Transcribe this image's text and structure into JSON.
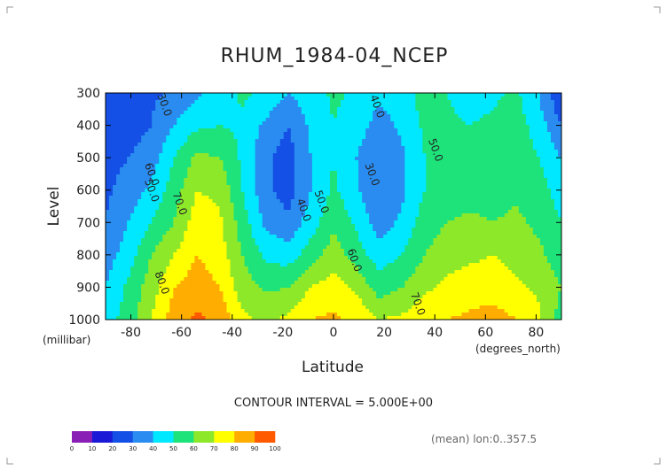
{
  "chart_data": {
    "type": "heatmap",
    "title": "RHUM_1984-04_NCEP",
    "xlabel": "Latitude",
    "ylabel": "Level",
    "x_unit": "(degrees_north)",
    "y_unit": "(millibar)",
    "xlim": [
      -90,
      90
    ],
    "ylim": [
      1000,
      300
    ],
    "x_ticks": [
      "-80",
      "-60",
      "-40",
      "-20",
      "0",
      "20",
      "40",
      "60",
      "80"
    ],
    "x_tick_values": [
      -80,
      -60,
      -40,
      -20,
      0,
      20,
      40,
      60,
      80
    ],
    "y_ticks": [
      "300",
      "400",
      "500",
      "600",
      "700",
      "800",
      "900",
      "1000"
    ],
    "y_tick_values": [
      300,
      400,
      500,
      600,
      700,
      800,
      900,
      1000
    ],
    "contour_interval_text": "CONTOUR INTERVAL = 5.000E+00",
    "footnote": "(mean) lon:0..357.5",
    "colorbar": {
      "levels": [
        0,
        10,
        20,
        30,
        40,
        50,
        60,
        70,
        80,
        90,
        100
      ],
      "labels": [
        "0",
        "10",
        "20",
        "30",
        "40",
        "50",
        "60",
        "70",
        "80",
        "90",
        "100"
      ],
      "colors": [
        "#8a1fb5",
        "#1a1ad6",
        "#1450e6",
        "#2a8cf0",
        "#00e8ff",
        "#1ee37a",
        "#8ee82a",
        "#ffff00",
        "#ffad00",
        "#ff5a00",
        "#e80000"
      ]
    },
    "contour_labels": [
      {
        "text": "30.0",
        "lat": -68,
        "level": 340
      },
      {
        "text": "40.0",
        "lat": 16,
        "level": 345
      },
      {
        "text": "50.0",
        "lat": 39,
        "level": 480
      },
      {
        "text": "60.0",
        "lat": -73,
        "level": 555
      },
      {
        "text": "50.0",
        "lat": -73,
        "level": 605
      },
      {
        "text": "30.0",
        "lat": 14,
        "level": 555
      },
      {
        "text": "70.0",
        "lat": -62,
        "level": 645
      },
      {
        "text": "40.0",
        "lat": -13,
        "level": 665
      },
      {
        "text": "50.0",
        "lat": -6,
        "level": 640
      },
      {
        "text": "60.0",
        "lat": 7,
        "level": 820
      },
      {
        "text": "80.0",
        "lat": -69,
        "level": 890
      },
      {
        "text": "70.0",
        "lat": 32,
        "level": 955
      }
    ],
    "grid": [
      [
        20,
        22,
        28,
        32,
        38,
        45,
        52,
        48,
        40,
        45,
        52,
        48,
        42,
        45,
        55,
        50,
        45,
        48,
        52,
        40,
        20
      ],
      [
        22,
        25,
        30,
        40,
        48,
        50,
        48,
        38,
        30,
        42,
        50,
        45,
        36,
        42,
        52,
        52,
        50,
        52,
        55,
        45,
        30
      ],
      [
        25,
        30,
        35,
        50,
        62,
        60,
        48,
        32,
        25,
        40,
        50,
        40,
        30,
        38,
        50,
        55,
        55,
        55,
        58,
        50,
        40
      ],
      [
        28,
        35,
        42,
        55,
        70,
        68,
        50,
        33,
        25,
        40,
        52,
        42,
        30,
        38,
        50,
        56,
        56,
        56,
        58,
        55,
        45
      ],
      [
        30,
        40,
        50,
        60,
        75,
        72,
        55,
        38,
        32,
        45,
        58,
        48,
        35,
        42,
        55,
        60,
        62,
        60,
        62,
        58,
        50
      ],
      [
        35,
        45,
        60,
        70,
        80,
        75,
        60,
        48,
        45,
        55,
        65,
        55,
        45,
        50,
        60,
        66,
        68,
        70,
        66,
        62,
        55
      ],
      [
        40,
        52,
        65,
        80,
        85,
        80,
        65,
        58,
        60,
        70,
        75,
        68,
        55,
        60,
        68,
        72,
        75,
        76,
        72,
        68,
        60
      ],
      [
        45,
        55,
        70,
        85,
        92,
        88,
        72,
        68,
        72,
        80,
        82,
        78,
        70,
        72,
        76,
        80,
        82,
        84,
        80,
        72,
        55
      ]
    ]
  }
}
